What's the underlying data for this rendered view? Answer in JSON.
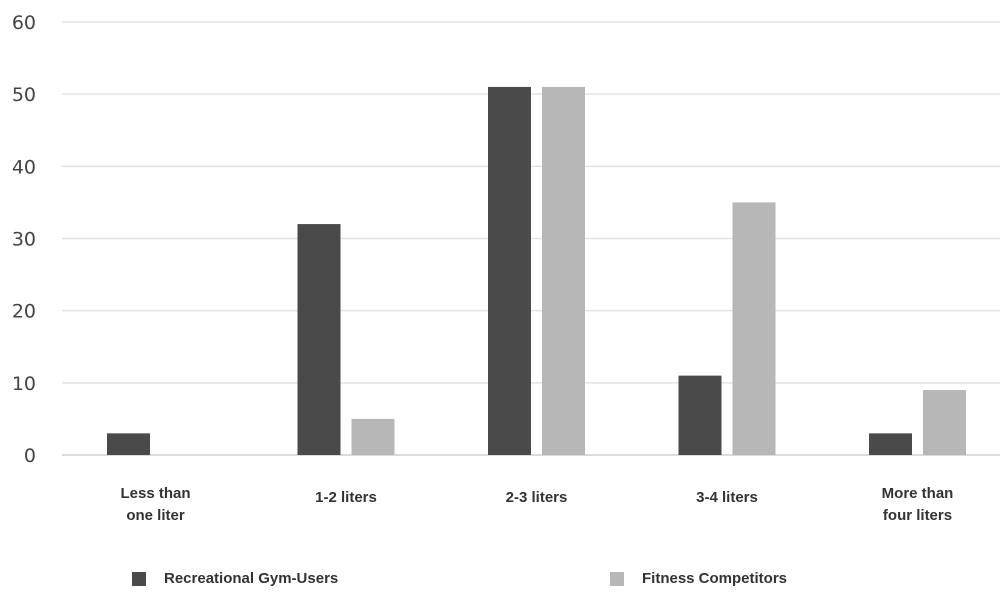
{
  "chart_data": {
    "type": "bar",
    "title": "",
    "xlabel": "",
    "ylabel": "",
    "ylim": [
      0,
      60
    ],
    "yticks": [
      0,
      10,
      20,
      30,
      40,
      50,
      60
    ],
    "grid": true,
    "legend_position": "bottom",
    "categories": [
      [
        "Less than",
        "one liter"
      ],
      [
        "1-2 liters"
      ],
      [
        "2-3 liters"
      ],
      [
        "3-4 liters"
      ],
      [
        "More than",
        "four liters"
      ]
    ],
    "series": [
      {
        "name": "Recreational Gym-Users",
        "color": "#4a4a4a",
        "values": [
          3,
          32,
          51,
          11,
          3
        ]
      },
      {
        "name": "Fitness Competitors",
        "color": "#b7b7b7",
        "values": [
          0,
          5,
          51,
          35,
          9
        ]
      }
    ]
  }
}
